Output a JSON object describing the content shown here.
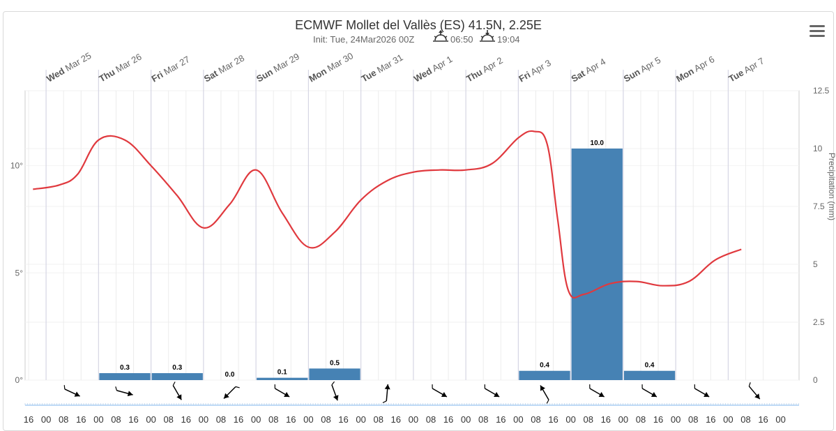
{
  "header": {
    "title": "ECMWF Mollet del Vallès (ES) 41.5N, 2.25E",
    "init": "Init: Tue, 24Mar2026 00Z",
    "sunrise": "06:50",
    "sunset": "19:04",
    "sunrise_icon": "sunrise-icon",
    "sunset_icon": "sunset-icon",
    "menu_icon": "hamburger-menu-icon"
  },
  "chart_data": {
    "type": "bar+line",
    "title": "ECMWF Mollet del Vallès (ES) 41.5N, 2.25E",
    "days": [
      {
        "dow": "Wed",
        "date": "Mar 25"
      },
      {
        "dow": "Thu",
        "date": "Mar 26"
      },
      {
        "dow": "Fri",
        "date": "Mar 27"
      },
      {
        "dow": "Sat",
        "date": "Mar 28"
      },
      {
        "dow": "Sun",
        "date": "Mar 29"
      },
      {
        "dow": "Mon",
        "date": "Mar 30"
      },
      {
        "dow": "Tue",
        "date": "Mar 31"
      },
      {
        "dow": "Wed",
        "date": "Apr 1"
      },
      {
        "dow": "Thu",
        "date": "Apr 2"
      },
      {
        "dow": "Fri",
        "date": "Apr 3"
      },
      {
        "dow": "Sat",
        "date": "Apr 4"
      },
      {
        "dow": "Sun",
        "date": "Apr 5"
      },
      {
        "dow": "Mon",
        "date": "Apr 6"
      },
      {
        "dow": "Tue",
        "date": "Apr 7"
      }
    ],
    "x_start_day": -0.4,
    "x_end_day": 14.35,
    "hour_ticks": [
      "08",
      "16",
      "00",
      "08",
      "16",
      "00",
      "08",
      "16",
      "00",
      "08",
      "16",
      "00",
      "08",
      "16",
      "00",
      "08",
      "16",
      "00",
      "08",
      "16",
      "00",
      "08",
      "16",
      "00",
      "08",
      "16",
      "00",
      "08",
      "16",
      "00",
      "08",
      "16",
      "00",
      "08",
      "16",
      "00",
      "08",
      "16",
      "00",
      "08",
      "16",
      "00",
      "08",
      "16",
      "00"
    ],
    "temperature": {
      "name": "Temperature",
      "unit": "°",
      "color": "#e0393e",
      "ylim": [
        0,
        13.5
      ],
      "ticks": [
        0,
        5,
        10
      ],
      "tick_labels": [
        "0°",
        "5°",
        "10°"
      ],
      "x_days": [
        -0.25,
        0.25,
        0.6,
        1.0,
        1.5,
        2.0,
        2.5,
        3.0,
        3.5,
        4.0,
        4.5,
        5.0,
        5.5,
        6.0,
        6.5,
        7.0,
        7.5,
        8.0,
        8.5,
        9.0,
        9.3,
        9.55,
        9.75,
        9.95,
        10.25,
        10.75,
        11.25,
        11.75,
        12.25,
        12.75,
        13.25
      ],
      "values": [
        8.9,
        9.1,
        9.6,
        11.2,
        11.2,
        10.0,
        8.6,
        7.1,
        8.2,
        9.8,
        7.8,
        6.2,
        6.9,
        8.4,
        9.3,
        9.7,
        9.8,
        9.8,
        10.1,
        11.3,
        11.6,
        11.0,
        7.5,
        4.2,
        4.0,
        4.5,
        4.6,
        4.4,
        4.6,
        5.6,
        6.1
      ]
    },
    "precipitation": {
      "name": "Precipitation (mm)",
      "ylabel": "Precipitation (mm)",
      "color": "#4682b4",
      "ylim": [
        0,
        12.5
      ],
      "ticks": [
        0,
        2.5,
        5,
        7.5,
        10,
        12.5
      ],
      "tick_labels": [
        "0",
        "2.5",
        "5",
        "7.5",
        "10",
        "12.5"
      ],
      "bars": [
        {
          "day": 1,
          "value": 0.3,
          "label": "0.3"
        },
        {
          "day": 2,
          "value": 0.3,
          "label": "0.3"
        },
        {
          "day": 3,
          "value": 0.0,
          "label": "0.0"
        },
        {
          "day": 4,
          "value": 0.1,
          "label": "0.1"
        },
        {
          "day": 5,
          "value": 0.5,
          "label": "0.5"
        },
        {
          "day": 9,
          "value": 0.4,
          "label": "0.4"
        },
        {
          "day": 10,
          "value": 10.0,
          "label": "10.0"
        },
        {
          "day": 11,
          "value": 0.4,
          "label": "0.4"
        }
      ]
    },
    "wind_direction_deg": [
      295,
      285,
      330,
      45,
      300,
      340,
      185,
      300,
      300,
      150,
      300,
      300,
      300,
      320
    ]
  }
}
